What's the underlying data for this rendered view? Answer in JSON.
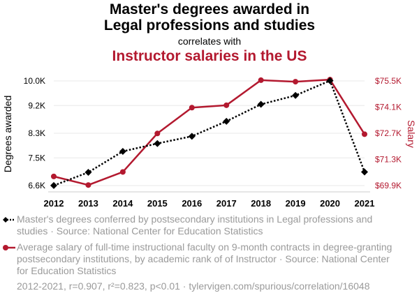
{
  "header": {
    "title_line1": "Master's degrees awarded in",
    "title_line2": "Legal professions and studies",
    "connector": "correlates with",
    "title_series2": "Instructor salaries in the US"
  },
  "chart_data": {
    "type": "line",
    "x": [
      2012,
      2013,
      2014,
      2015,
      2016,
      2017,
      2018,
      2019,
      2020,
      2021
    ],
    "x_tick_labels": [
      "2012",
      "2013",
      "2014",
      "2015",
      "2016",
      "2017",
      "2018",
      "2019",
      "2020",
      "2021"
    ],
    "series": [
      {
        "name": "Master's degrees conferred by postsecondary institutions in Legal professions and studies",
        "axis": "left",
        "color": "#000000",
        "style": "dotted",
        "marker": "diamond",
        "values": [
          6602,
          7030,
          7712,
          7967,
          8202,
          8689,
          9240,
          9529,
          10008,
          7042
        ]
      },
      {
        "name": "Average salary of full-time instructional faculty on 9-month contracts in degree-granting postsecondary institutions, by academic rank of of Instructor",
        "axis": "right",
        "color": "#b3192f",
        "style": "solid",
        "marker": "circle",
        "values": [
          70390,
          69930,
          70630,
          72690,
          74070,
          74200,
          75540,
          75460,
          75570,
          72650
        ]
      }
    ],
    "left_axis": {
      "label": "Degrees awarded",
      "range": [
        6500,
        10050
      ],
      "ticks": [
        6600,
        7500,
        8300,
        9200,
        10000
      ],
      "tick_labels": [
        "6.6K",
        "7.5K",
        "8.3K",
        "9.2K",
        "10.0K"
      ],
      "color": "#000000"
    },
    "right_axis": {
      "label": "Salary",
      "range": [
        69700,
        75600
      ],
      "ticks": [
        69900,
        71300,
        72700,
        74100,
        75500
      ],
      "tick_labels": [
        "$69.9K",
        "$71.3K",
        "$72.7K",
        "$74.1K",
        "$75.5K"
      ],
      "color": "#b3192f"
    },
    "grid": "horizontal"
  },
  "legend": {
    "item1": "Master's degrees conferred by postsecondary institutions in Legal professions and studies · Source: National Center for Education Statistics",
    "item2": "Average salary of full-time instructional faculty on 9-month contracts in degree-granting postsecondary institutions, by academic rank of of Instructor · Source: National Center for Education Statistics"
  },
  "footer": "2012-2021, r=0.907, r²=0.823, p<0.01 · tylervigen.com/spurious/correlation/16048"
}
